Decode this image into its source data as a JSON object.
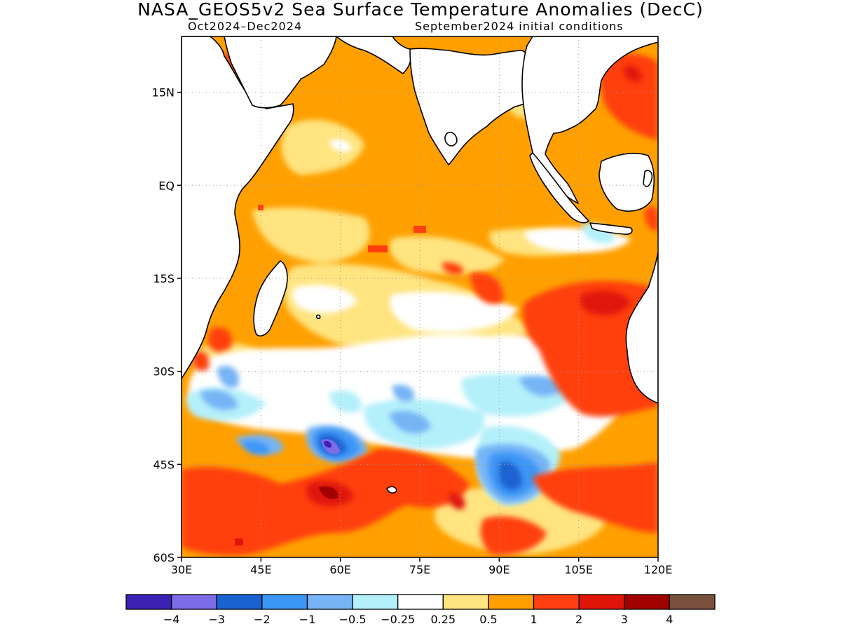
{
  "header": {
    "title": "NASA_GEOS5v2 Sea Surface Temperature Anomalies (DecC)",
    "period": "Oct2024–Dec2024",
    "initial_conditions": "September2024 initial conditions"
  },
  "map": {
    "region": {
      "lon_min": 30,
      "lon_max": 120,
      "lat_min": -60,
      "lat_max": 24
    },
    "lat_ticks": [
      {
        "value": 15,
        "label": "15N"
      },
      {
        "value": 0,
        "label": "EQ"
      },
      {
        "value": -15,
        "label": "15S"
      },
      {
        "value": -30,
        "label": "30S"
      },
      {
        "value": -45,
        "label": "45S"
      },
      {
        "value": -60,
        "label": "60S"
      }
    ],
    "lon_ticks": [
      {
        "value": 30,
        "label": "30E"
      },
      {
        "value": 45,
        "label": "45E"
      },
      {
        "value": 60,
        "label": "60E"
      },
      {
        "value": 75,
        "label": "75E"
      },
      {
        "value": 90,
        "label": "90E"
      },
      {
        "value": 105,
        "label": "105E"
      },
      {
        "value": 120,
        "label": "120E"
      }
    ],
    "grid": "dotted",
    "background_level": "0.5 to 1",
    "anomaly_regions": [
      {
        "name": "arabian-sea-light",
        "level": "0.25 to 0.5",
        "color": "#ffe480",
        "lon": [
          38,
          64
        ],
        "lat": [
          -5,
          16
        ]
      },
      {
        "name": "south-indian-light",
        "level": "0.25 to 0.5",
        "color": "#ffe480",
        "lon": [
          40,
          100
        ],
        "lat": [
          -30,
          -8
        ]
      },
      {
        "name": "subtropical-neutral",
        "level": "-0.25 to 0.25",
        "color": "#ffffff",
        "lon": [
          45,
          105
        ],
        "lat": [
          -45,
          -22
        ]
      },
      {
        "name": "southern-ocean-warm",
        "level": "1 to 2",
        "color": "#ff3f10",
        "lon": [
          30,
          120
        ],
        "lat": [
          -60,
          -40
        ]
      },
      {
        "name": "west-australia-warm",
        "level": "1 to 2",
        "color": "#ff3f10",
        "lon": [
          95,
          120
        ],
        "lat": [
          -38,
          -12
        ]
      },
      {
        "name": "south-china-sea-warm",
        "level": "1 to 2",
        "color": "#ff3f10",
        "lon": [
          110,
          120
        ],
        "lat": [
          8,
          22
        ]
      },
      {
        "name": "mid-ocean-cool",
        "level": "-1 to -0.5",
        "color": "#76b4f6",
        "lon": [
          55,
          100
        ],
        "lat": [
          -44,
          -31
        ]
      },
      {
        "name": "west-cool",
        "level": "-1 to -0.5",
        "color": "#76b4f6",
        "lon": [
          32,
          50
        ],
        "lat": [
          -42,
          -31
        ]
      },
      {
        "name": "center-58e-44s",
        "level": "< -4",
        "color": "#3b22b4",
        "lon": [
          55,
          62
        ],
        "lat": [
          -45,
          -40
        ]
      },
      {
        "name": "center-93e-47s",
        "level": "-3 to -2",
        "color": "#1a62d2",
        "lon": [
          85,
          100
        ],
        "lat": [
          -50,
          -42
        ]
      }
    ]
  },
  "colorbar": {
    "colors": [
      "#3b22b4",
      "#7c6ce8",
      "#1a62d2",
      "#3c96f6",
      "#76b4f6",
      "#b4f0fa",
      "#ffffff",
      "#ffe480",
      "#ffa000",
      "#ff3f10",
      "#e01408",
      "#a00000",
      "#78503c"
    ],
    "labels": [
      "−4",
      "−3",
      "−2",
      "−1",
      "−0.5",
      "−0.25",
      "0.25",
      "0.5",
      "1",
      "2",
      "3",
      "4"
    ]
  }
}
